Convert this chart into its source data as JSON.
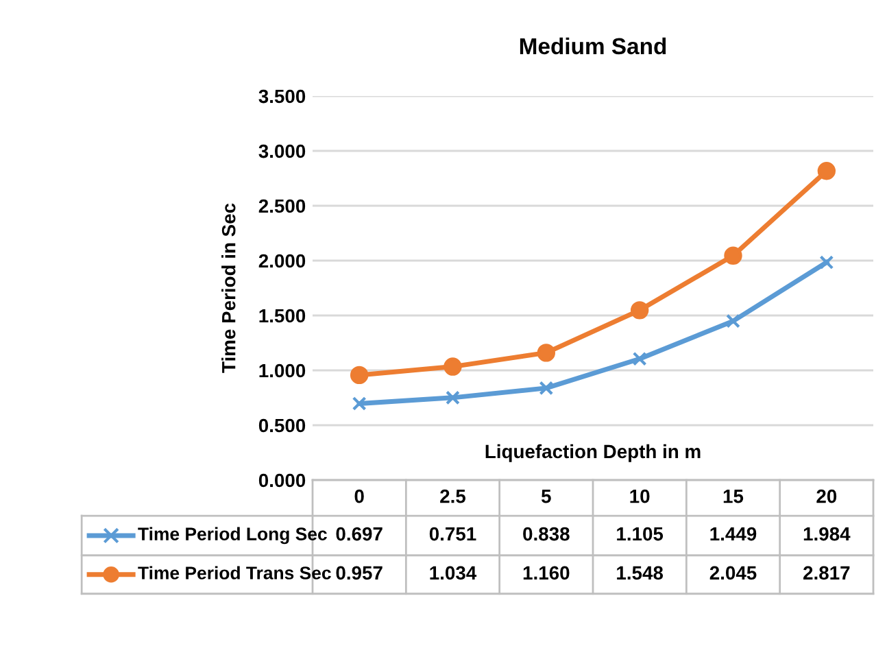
{
  "chart_data": {
    "type": "line",
    "title": "Medium Sand",
    "xlabel": "Liquefaction Depth in m",
    "ylabel": "Time Period in Sec",
    "categories": [
      "0",
      "2.5",
      "5",
      "10",
      "15",
      "20"
    ],
    "series": [
      {
        "name": "Time Period Long Sec",
        "color": "#5b9bd5",
        "marker": "cross",
        "values": [
          0.697,
          0.751,
          0.838,
          1.105,
          1.449,
          1.984
        ],
        "value_labels": [
          "0.697",
          "0.751",
          "0.838",
          "1.105",
          "1.449",
          "1.984"
        ]
      },
      {
        "name": "Time Period Trans Sec",
        "color": "#ed7d31",
        "marker": "circle",
        "values": [
          0.957,
          1.034,
          1.16,
          1.548,
          2.045,
          2.817
        ],
        "value_labels": [
          "0.957",
          "1.034",
          "1.160",
          "1.548",
          "2.045",
          "2.817"
        ]
      }
    ],
    "ylim": [
      0,
      3.5
    ],
    "yticks": [
      {
        "value": 0,
        "label": "0.000"
      },
      {
        "value": 0.5,
        "label": "0.500"
      },
      {
        "value": 1,
        "label": "1.000"
      },
      {
        "value": 1.5,
        "label": "1.500"
      },
      {
        "value": 2,
        "label": "2.000"
      },
      {
        "value": 2.5,
        "label": "2.500"
      },
      {
        "value": 3,
        "label": "3.000"
      },
      {
        "value": 3.5,
        "label": "3.500"
      }
    ],
    "grid": "y",
    "legend": "bottom",
    "tick_labels": "y",
    "line_style": "solid"
  }
}
